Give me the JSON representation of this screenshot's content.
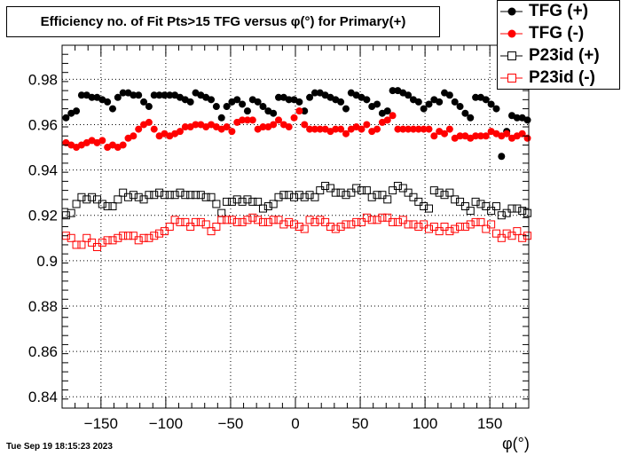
{
  "chart_data": {
    "type": "scatter",
    "title": "Efficiency no. of Fit Pts>15 TFG versus φ(°) for Primary(+)",
    "xlabel": "φ(°)",
    "ylabel": "",
    "xlim": [
      -180,
      180
    ],
    "ylim": [
      0.835,
      0.995
    ],
    "xticks": [
      -150,
      -100,
      -50,
      0,
      50,
      100,
      150
    ],
    "xtick_labels": [
      "−150",
      "−100",
      "−50",
      "0",
      "50",
      "100",
      "150"
    ],
    "yticks": [
      0.84,
      0.86,
      0.88,
      0.9,
      0.92,
      0.94,
      0.96,
      0.98
    ],
    "ytick_labels": [
      "0.84",
      "0.86",
      "0.88",
      "0.9",
      "0.92",
      "0.94",
      "0.96",
      "0.98"
    ],
    "grid": true,
    "legend_position": "top-right",
    "x": [
      -177,
      -173,
      -169,
      -165,
      -161,
      -157,
      -153,
      -149,
      -145,
      -141,
      -137,
      -133,
      -129,
      -125,
      -121,
      -117,
      -113,
      -109,
      -105,
      -101,
      -97,
      -93,
      -89,
      -85,
      -81,
      -77,
      -73,
      -69,
      -65,
      -61,
      -57,
      -53,
      -49,
      -45,
      -41,
      -37,
      -33,
      -29,
      -25,
      -21,
      -17,
      -13,
      -9,
      -5,
      -1,
      3,
      7,
      11,
      15,
      19,
      23,
      27,
      31,
      35,
      39,
      43,
      47,
      51,
      55,
      59,
      63,
      67,
      71,
      75,
      79,
      83,
      87,
      91,
      95,
      99,
      103,
      107,
      111,
      115,
      119,
      123,
      127,
      131,
      135,
      139,
      143,
      147,
      151,
      155,
      159,
      163,
      167,
      171,
      175,
      179
    ],
    "series": [
      {
        "name": "TFG (+)",
        "color": "#000000",
        "marker": "filled-circle",
        "values": [
          0.963,
          0.965,
          0.966,
          0.973,
          0.973,
          0.972,
          0.972,
          0.971,
          0.97,
          0.967,
          0.972,
          0.974,
          0.974,
          0.973,
          0.973,
          0.97,
          0.968,
          0.973,
          0.973,
          0.973,
          0.973,
          0.973,
          0.972,
          0.971,
          0.97,
          0.974,
          0.973,
          0.972,
          0.971,
          0.968,
          0.963,
          0.968,
          0.97,
          0.971,
          0.969,
          0.966,
          0.971,
          0.97,
          0.968,
          0.966,
          0.965,
          0.972,
          0.972,
          0.971,
          0.971,
          0.97,
          0.966,
          0.972,
          0.974,
          0.974,
          0.973,
          0.972,
          0.971,
          0.97,
          0.967,
          0.974,
          0.973,
          0.972,
          0.971,
          0.968,
          0.969,
          0.965,
          0.966,
          0.975,
          0.975,
          0.974,
          0.973,
          0.971,
          0.97,
          0.967,
          0.969,
          0.971,
          0.97,
          0.974,
          0.973,
          0.97,
          0.968,
          0.965,
          0.963,
          0.972,
          0.972,
          0.971,
          0.969,
          0.967,
          0.946,
          0.957,
          0.964,
          0.963,
          0.963,
          0.962
        ]
      },
      {
        "name": "TFG (-)",
        "color": "#ff0000",
        "marker": "filled-circle",
        "values": [
          0.952,
          0.951,
          0.95,
          0.951,
          0.952,
          0.953,
          0.952,
          0.953,
          0.95,
          0.951,
          0.95,
          0.951,
          0.954,
          0.955,
          0.958,
          0.96,
          0.961,
          0.958,
          0.955,
          0.956,
          0.955,
          0.956,
          0.957,
          0.959,
          0.959,
          0.96,
          0.96,
          0.959,
          0.96,
          0.959,
          0.958,
          0.959,
          0.957,
          0.961,
          0.962,
          0.962,
          0.962,
          0.958,
          0.959,
          0.959,
          0.96,
          0.962,
          0.96,
          0.959,
          0.963,
          0.966,
          0.96,
          0.958,
          0.958,
          0.958,
          0.958,
          0.957,
          0.958,
          0.958,
          0.956,
          0.958,
          0.959,
          0.958,
          0.96,
          0.957,
          0.958,
          0.961,
          0.962,
          0.964,
          0.958,
          0.958,
          0.958,
          0.958,
          0.958,
          0.958,
          0.958,
          0.955,
          0.957,
          0.956,
          0.958,
          0.954,
          0.955,
          0.955,
          0.954,
          0.955,
          0.955,
          0.955,
          0.957,
          0.956,
          0.955,
          0.956,
          0.954,
          0.955,
          0.956,
          0.954
        ]
      },
      {
        "name": "P23id (+)",
        "color": "#000000",
        "marker": "open-square",
        "values": [
          0.92,
          0.921,
          0.925,
          0.928,
          0.927,
          0.928,
          0.927,
          0.925,
          0.924,
          0.924,
          0.927,
          0.93,
          0.928,
          0.929,
          0.928,
          0.927,
          0.929,
          0.929,
          0.93,
          0.929,
          0.929,
          0.929,
          0.93,
          0.929,
          0.929,
          0.929,
          0.929,
          0.928,
          0.928,
          0.925,
          0.921,
          0.926,
          0.926,
          0.927,
          0.926,
          0.927,
          0.926,
          0.926,
          0.923,
          0.924,
          0.925,
          0.928,
          0.929,
          0.929,
          0.928,
          0.929,
          0.928,
          0.929,
          0.928,
          0.931,
          0.933,
          0.932,
          0.93,
          0.93,
          0.929,
          0.93,
          0.932,
          0.931,
          0.931,
          0.928,
          0.929,
          0.929,
          0.927,
          0.931,
          0.933,
          0.932,
          0.93,
          0.928,
          0.926,
          0.924,
          0.923,
          0.931,
          0.93,
          0.929,
          0.93,
          0.927,
          0.926,
          0.924,
          0.922,
          0.926,
          0.925,
          0.924,
          0.922,
          0.924,
          0.92,
          0.921,
          0.923,
          0.923,
          0.922,
          0.921
        ]
      },
      {
        "name": "P23id (-)",
        "color": "#ff0000",
        "marker": "open-square",
        "values": [
          0.911,
          0.91,
          0.907,
          0.907,
          0.91,
          0.908,
          0.906,
          0.908,
          0.909,
          0.909,
          0.91,
          0.911,
          0.911,
          0.911,
          0.909,
          0.91,
          0.91,
          0.911,
          0.912,
          0.913,
          0.915,
          0.918,
          0.917,
          0.917,
          0.915,
          0.917,
          0.917,
          0.916,
          0.913,
          0.915,
          0.918,
          0.918,
          0.918,
          0.917,
          0.917,
          0.918,
          0.919,
          0.918,
          0.917,
          0.917,
          0.918,
          0.918,
          0.916,
          0.917,
          0.916,
          0.915,
          0.914,
          0.918,
          0.917,
          0.918,
          0.917,
          0.915,
          0.914,
          0.915,
          0.916,
          0.916,
          0.917,
          0.917,
          0.919,
          0.918,
          0.918,
          0.919,
          0.919,
          0.917,
          0.917,
          0.918,
          0.916,
          0.916,
          0.915,
          0.916,
          0.914,
          0.915,
          0.913,
          0.915,
          0.913,
          0.914,
          0.915,
          0.915,
          0.916,
          0.917,
          0.917,
          0.914,
          0.916,
          0.912,
          0.91,
          0.912,
          0.911,
          0.913,
          0.91,
          0.911
        ]
      }
    ]
  },
  "footer": {
    "timestamp": "Tue Sep 19 18:15:23 2023"
  }
}
